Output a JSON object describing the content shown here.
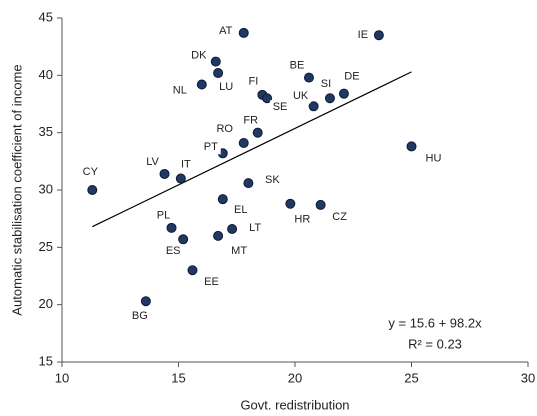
{
  "chart_data": {
    "type": "scatter",
    "x_label": "Govt. redistribution",
    "y_label": "Automatic stabilisation coefficient of income",
    "labels": [
      "AT",
      "IE",
      "DK",
      "LU",
      "NL",
      "BE",
      "DE",
      "SI",
      "UK",
      "FI",
      "SE",
      "FR",
      "RO",
      "PT",
      "LV",
      "IT",
      "CY",
      "SK",
      "EL",
      "HR",
      "CZ",
      "HU",
      "PL",
      "LT",
      "ES",
      "MT",
      "EE",
      "BG"
    ],
    "x": [
      17.8,
      23.6,
      16.6,
      16.7,
      16.0,
      20.6,
      22.1,
      21.5,
      20.8,
      18.6,
      18.8,
      18.4,
      17.8,
      16.9,
      14.4,
      15.1,
      11.3,
      18.0,
      16.9,
      19.8,
      21.1,
      25.0,
      14.7,
      17.3,
      15.2,
      16.7,
      15.6,
      13.6
    ],
    "values": [
      43.7,
      43.5,
      41.2,
      40.2,
      39.2,
      39.8,
      38.4,
      38.0,
      37.3,
      38.3,
      38.0,
      35.0,
      34.1,
      33.2,
      31.4,
      31.0,
      30.0,
      30.6,
      29.2,
      28.8,
      28.7,
      33.8,
      26.7,
      26.6,
      25.7,
      26.0,
      23.0,
      20.3
    ],
    "color": "#1f3864",
    "trendline": {
      "x": [
        11.3,
        25.0
      ],
      "values": [
        26.8,
        40.3
      ]
    },
    "annotations": [
      "y = 15.6 + 98.2x",
      "R² = 0.23"
    ],
    "xlim": [
      10,
      30
    ],
    "xticks": [
      10,
      15,
      20,
      25,
      30
    ],
    "ylim": [
      15,
      45
    ],
    "yticks": [
      15,
      20,
      25,
      30,
      35,
      40,
      45
    ]
  }
}
